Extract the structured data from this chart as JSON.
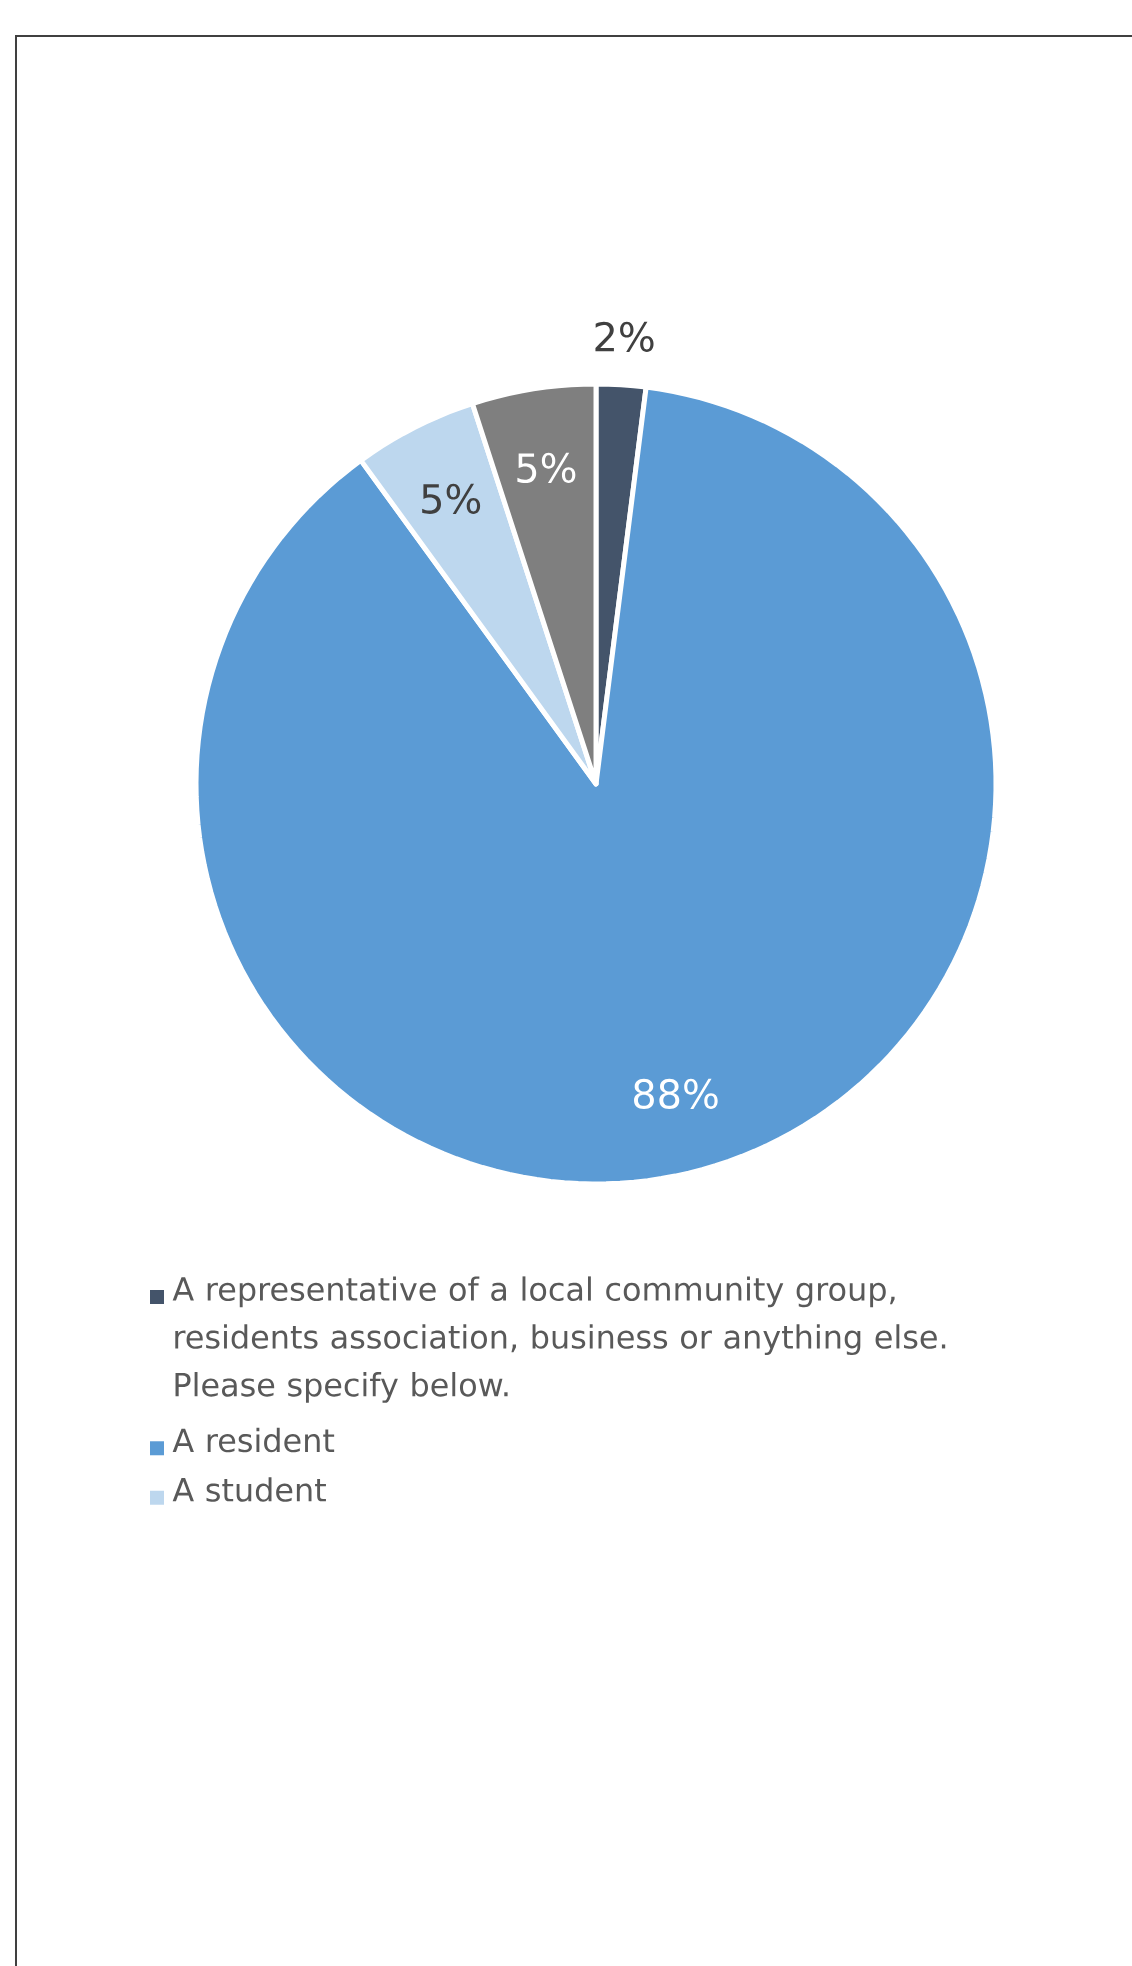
{
  "chart_data": {
    "type": "pie",
    "categories": [
      "A representative of a local community group, residents association, business or anything else. Please specify below.",
      "A resident",
      "A student",
      null
    ],
    "values": [
      2,
      88,
      5,
      5
    ],
    "colors": [
      "#44546a",
      "#5b9bd5",
      "#bdd7ee",
      "#7f7f7f"
    ],
    "value_labels": [
      "2%",
      "88%",
      "5%",
      "5%"
    ],
    "legend": "bottom"
  }
}
